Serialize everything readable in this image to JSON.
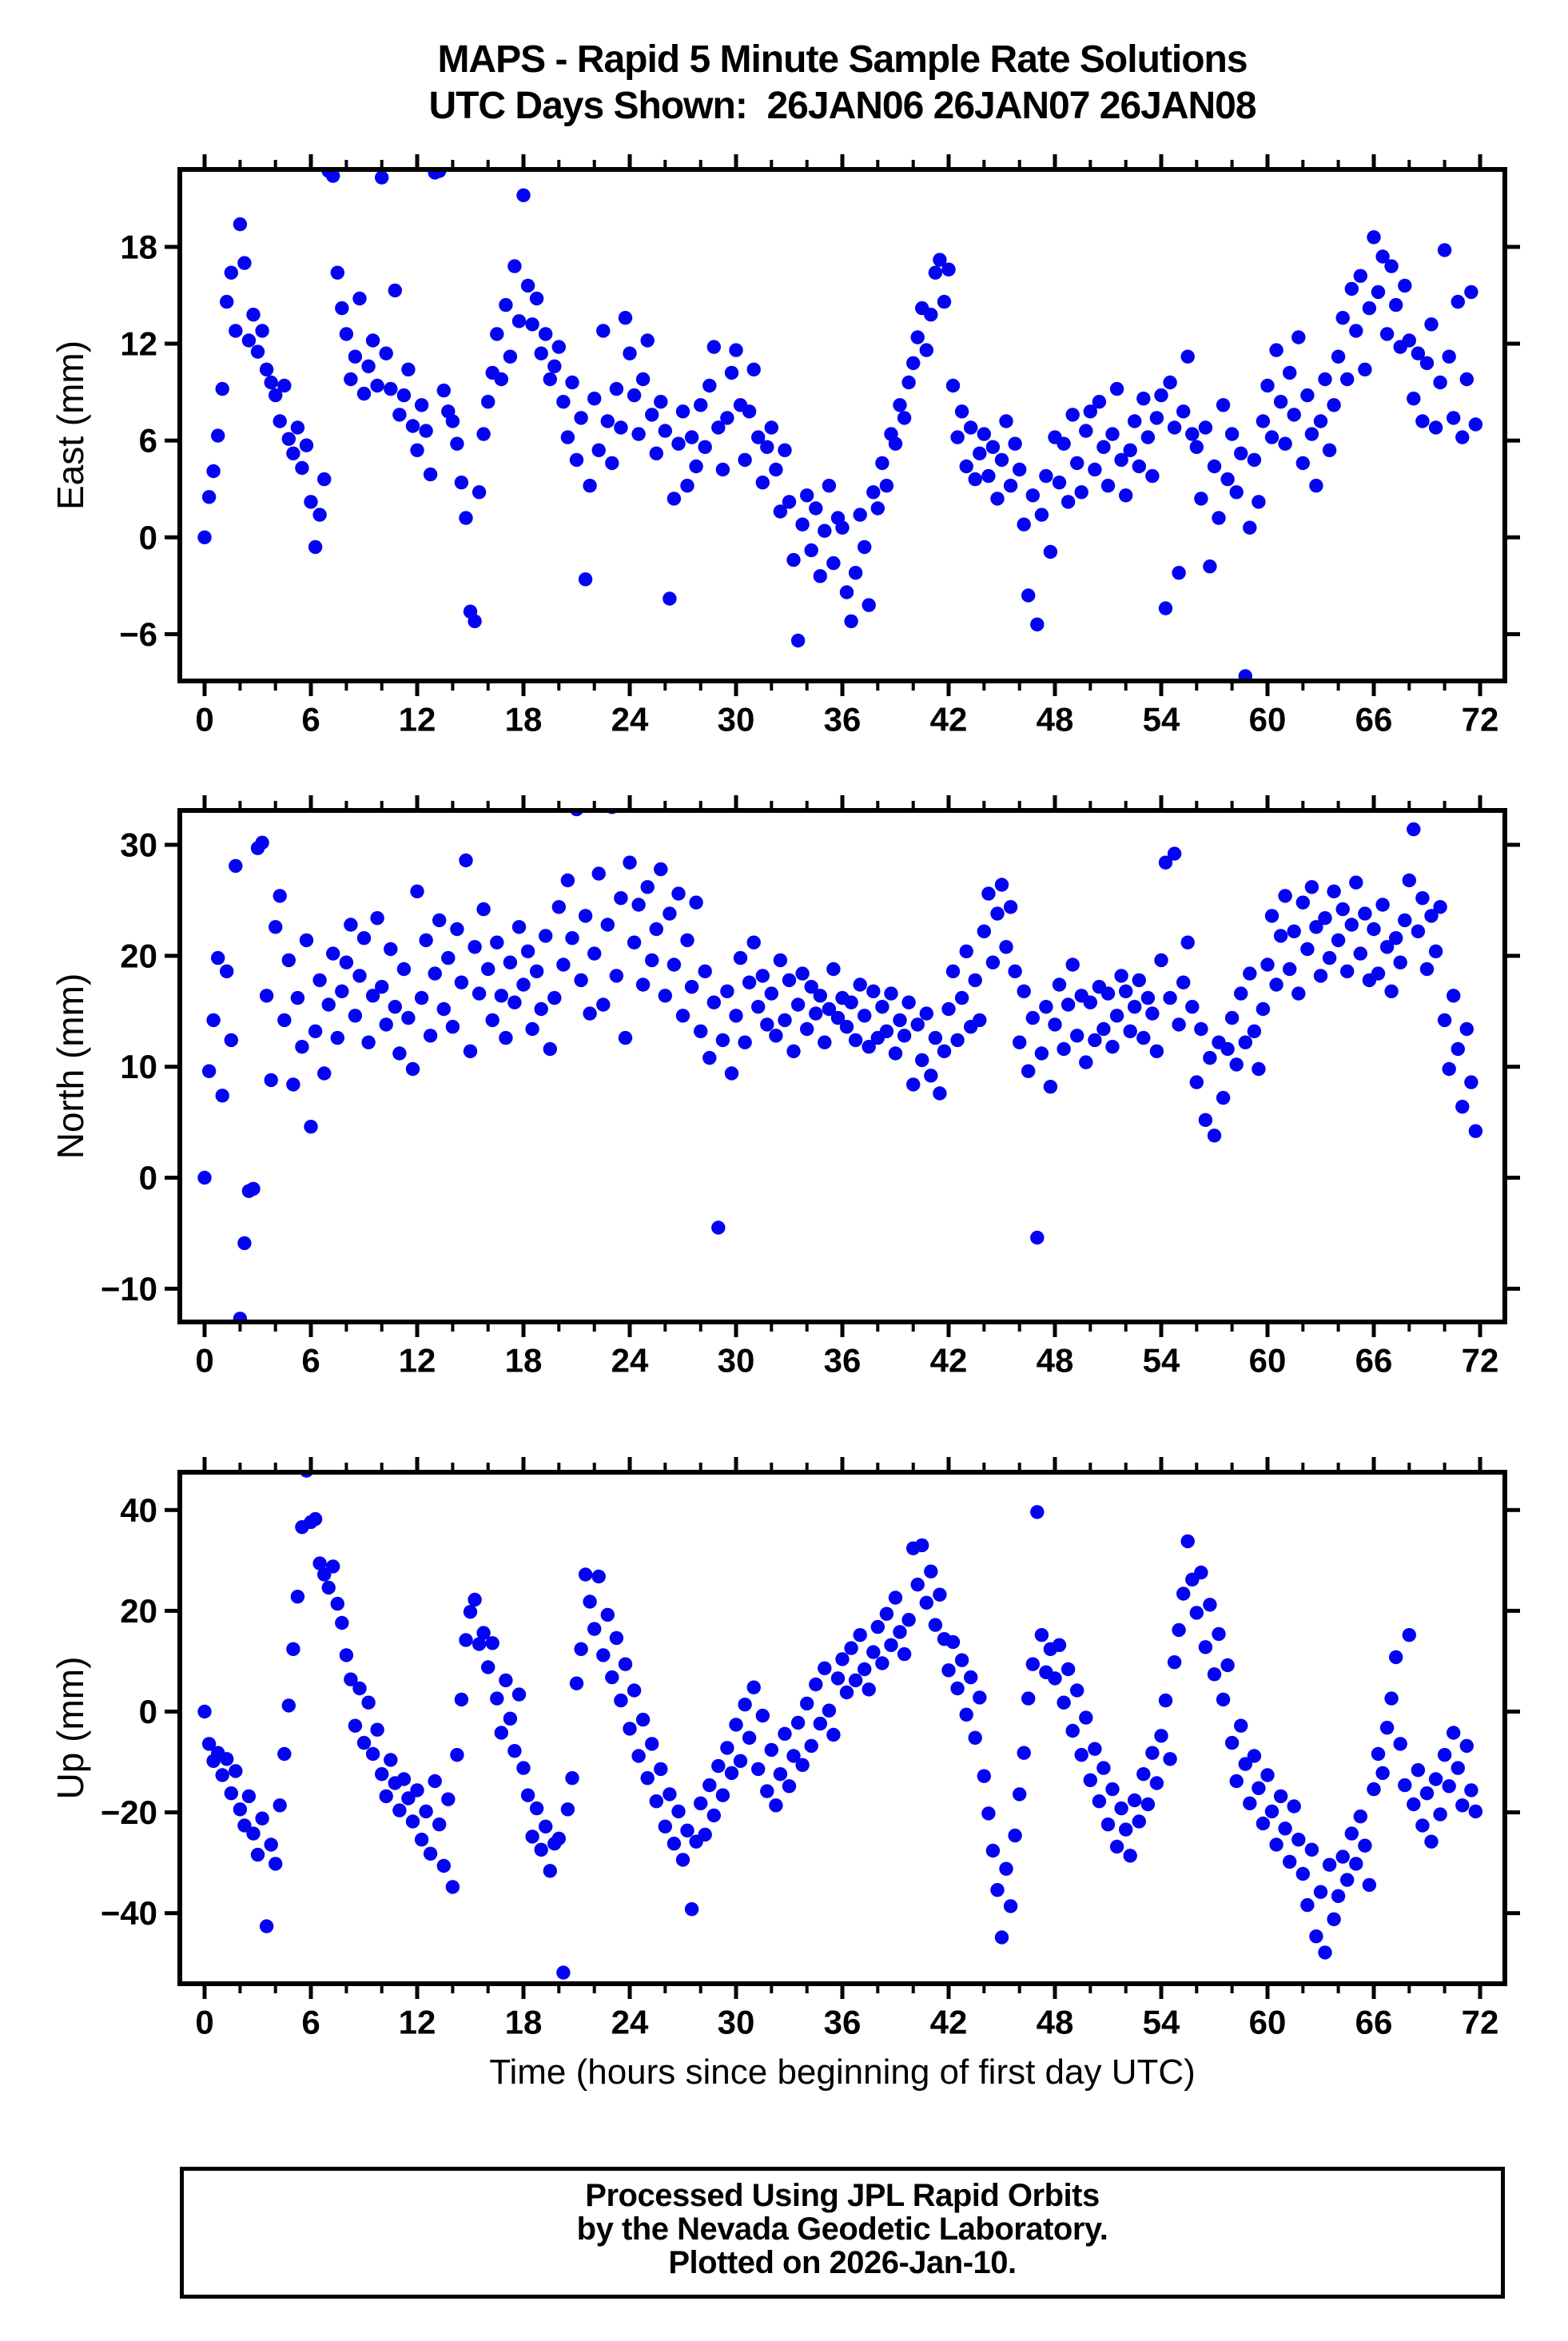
{
  "title": {
    "line1": "MAPS - Rapid 5 Minute Sample Rate Solutions",
    "line2": "UTC Days Shown:  26JAN06 26JAN07 26JAN08"
  },
  "xlabel": "Time (hours since beginning of first day UTC)",
  "footer": {
    "line1": "Processed Using JPL Rapid Orbits",
    "line2": "by the Nevada Geodetic Laboratory.",
    "line3": "Plotted on 2026-Jan-10."
  },
  "colors": {
    "point": "#0404f2",
    "axis": "#000000",
    "background": "#ffffff"
  },
  "chart_data": [
    {
      "id": "east",
      "type": "scatter",
      "ylabel": "East (mm)",
      "xlabel": "",
      "xlim": [
        -1.4,
        73.4
      ],
      "ylim": [
        -8.9,
        22.8
      ],
      "xticks": [
        0,
        6,
        12,
        18,
        24,
        30,
        36,
        42,
        48,
        54,
        60,
        66,
        72
      ],
      "xminor_step": 2,
      "yticks": [
        -6,
        0,
        6,
        12,
        18
      ],
      "grid": false,
      "legend": "none",
      "marker": {
        "shape": "circle",
        "radius_px": 8.7
      },
      "x_start": 0,
      "x_step": 0.25,
      "y": [
        0.0,
        2.5,
        4.1,
        6.3,
        9.2,
        14.6,
        16.4,
        12.8,
        19.4,
        17.0,
        12.2,
        13.8,
        11.5,
        12.8,
        10.4,
        9.6,
        8.8,
        7.2,
        9.4,
        6.1,
        5.2,
        6.8,
        4.3,
        5.7,
        2.2,
        -0.6,
        1.4,
        3.6,
        22.7,
        22.4,
        16.4,
        14.2,
        12.6,
        9.8,
        11.2,
        14.8,
        8.9,
        10.6,
        12.2,
        9.4,
        22.3,
        11.4,
        9.2,
        15.3,
        7.6,
        8.8,
        10.4,
        6.9,
        5.4,
        8.2,
        6.6,
        3.9,
        22.6,
        22.7,
        9.1,
        7.8,
        7.2,
        5.8,
        3.4,
        1.2,
        -4.6,
        -5.2,
        2.8,
        6.4,
        8.4,
        10.2,
        12.6,
        9.8,
        14.4,
        11.2,
        16.8,
        13.4,
        21.2,
        15.6,
        13.2,
        14.8,
        11.4,
        12.6,
        9.8,
        10.6,
        11.8,
        8.4,
        6.2,
        9.6,
        4.8,
        7.4,
        -2.6,
        3.2,
        8.6,
        5.4,
        12.8,
        7.2,
        4.6,
        9.2,
        6.8,
        13.6,
        11.4,
        8.8,
        6.4,
        9.8,
        12.2,
        7.6,
        5.2,
        8.4,
        6.6,
        -3.8,
        2.4,
        5.8,
        7.8,
        3.2,
        6.2,
        4.4,
        8.2,
        5.6,
        9.4,
        11.8,
        6.8,
        4.2,
        7.4,
        10.2,
        11.6,
        8.2,
        4.8,
        7.8,
        10.4,
        6.2,
        3.4,
        5.6,
        6.8,
        4.2,
        1.6,
        5.4,
        2.2,
        -1.4,
        -6.4,
        0.8,
        2.6,
        -0.8,
        1.8,
        -2.4,
        0.4,
        3.2,
        -1.6,
        1.2,
        0.6,
        -3.4,
        -5.2,
        -2.2,
        1.4,
        -0.6,
        -4.2,
        2.8,
        1.8,
        4.6,
        3.2,
        6.4,
        5.8,
        8.2,
        7.4,
        9.6,
        10.8,
        12.4,
        14.2,
        11.6,
        13.8,
        16.4,
        17.2,
        14.6,
        16.6,
        9.4,
        6.2,
        7.8,
        4.4,
        6.8,
        3.6,
        5.2,
        6.4,
        3.8,
        5.6,
        2.4,
        4.8,
        7.2,
        3.2,
        5.8,
        4.2,
        0.8,
        -3.6,
        2.6,
        -5.4,
        1.4,
        3.8,
        -0.9,
        6.2,
        3.4,
        5.8,
        2.2,
        7.6,
        4.6,
        2.8,
        6.6,
        7.8,
        4.2,
        8.4,
        5.6,
        3.2,
        6.4,
        9.2,
        4.8,
        2.6,
        5.4,
        7.2,
        4.4,
        8.6,
        6.2,
        3.8,
        7.4,
        8.8,
        -4.4,
        9.6,
        6.8,
        -2.2,
        7.8,
        11.2,
        6.4,
        5.6,
        2.4,
        6.8,
        -1.8,
        4.4,
        1.2,
        8.2,
        3.6,
        6.4,
        2.8,
        5.2,
        -8.6,
        0.6,
        4.8,
        2.2,
        7.2,
        9.4,
        6.2,
        11.6,
        8.4,
        5.8,
        10.2,
        7.6,
        12.4,
        4.6,
        8.8,
        6.4,
        3.2,
        7.2,
        9.8,
        5.4,
        8.2,
        11.2,
        13.6,
        9.8,
        15.4,
        12.8,
        16.2,
        10.4,
        14.2,
        18.6,
        15.2,
        17.4,
        12.6,
        16.8,
        14.4,
        11.8,
        15.6,
        12.2,
        8.6,
        11.4,
        7.2,
        10.8,
        13.2,
        6.8,
        9.6,
        17.8,
        11.2,
        7.4,
        14.6,
        6.2,
        9.8,
        15.2,
        7.0
      ]
    },
    {
      "id": "north",
      "type": "scatter",
      "ylabel": "North (mm)",
      "xlabel": "",
      "xlim": [
        -1.4,
        73.4
      ],
      "ylim": [
        -13.0,
        33.1
      ],
      "xticks": [
        0,
        6,
        12,
        18,
        24,
        30,
        36,
        42,
        48,
        54,
        60,
        66,
        72
      ],
      "xminor_step": 2,
      "yticks": [
        -10,
        0,
        10,
        20,
        30
      ],
      "grid": false,
      "legend": "none",
      "marker": {
        "shape": "circle",
        "radius_px": 8.7
      },
      "x_start": 0,
      "x_step": 0.25,
      "y": [
        0.0,
        9.6,
        14.2,
        19.8,
        7.4,
        18.6,
        12.4,
        28.1,
        -12.7,
        -5.9,
        -1.2,
        -1.0,
        29.7,
        30.2,
        16.4,
        8.8,
        22.6,
        25.4,
        14.2,
        19.6,
        8.4,
        16.2,
        11.8,
        21.4,
        4.6,
        13.2,
        17.8,
        9.4,
        15.6,
        20.2,
        12.6,
        16.8,
        19.4,
        22.8,
        14.6,
        18.2,
        21.6,
        12.2,
        16.4,
        23.4,
        17.2,
        13.8,
        20.6,
        15.4,
        11.2,
        18.8,
        14.4,
        9.8,
        25.8,
        16.2,
        21.4,
        12.8,
        18.4,
        23.2,
        15.2,
        19.8,
        13.6,
        22.4,
        17.6,
        28.6,
        11.4,
        20.8,
        16.6,
        24.2,
        18.8,
        14.2,
        21.2,
        16.4,
        12.6,
        19.4,
        15.8,
        22.6,
        17.4,
        20.4,
        13.4,
        18.6,
        15.2,
        21.8,
        11.6,
        16.2,
        24.4,
        19.2,
        26.8,
        21.6,
        33.2,
        17.8,
        23.6,
        14.8,
        20.2,
        27.4,
        15.6,
        22.8,
        33.4,
        18.2,
        25.2,
        12.6,
        28.4,
        21.2,
        24.6,
        17.4,
        26.2,
        19.6,
        22.4,
        27.8,
        16.4,
        23.8,
        19.2,
        25.6,
        14.6,
        21.4,
        17.2,
        24.8,
        13.2,
        18.6,
        10.8,
        15.8,
        -4.5,
        12.4,
        16.8,
        9.4,
        14.6,
        19.8,
        12.2,
        17.6,
        21.2,
        15.4,
        18.2,
        13.8,
        16.6,
        12.8,
        19.6,
        14.2,
        17.8,
        11.4,
        15.6,
        18.4,
        13.4,
        17.2,
        14.8,
        16.4,
        12.2,
        15.2,
        18.8,
        14.4,
        16.2,
        13.6,
        15.8,
        12.4,
        17.4,
        14.6,
        11.8,
        16.8,
        12.6,
        15.4,
        13.2,
        16.6,
        11.2,
        14.2,
        12.8,
        15.8,
        8.4,
        13.8,
        10.6,
        14.8,
        9.2,
        12.6,
        7.6,
        11.4,
        15.2,
        18.6,
        12.4,
        16.2,
        20.4,
        13.6,
        17.8,
        14.2,
        22.2,
        25.6,
        19.4,
        23.8,
        26.4,
        20.8,
        24.4,
        18.6,
        12.2,
        16.8,
        9.6,
        14.4,
        -5.4,
        11.2,
        15.4,
        8.2,
        13.8,
        17.4,
        11.6,
        15.6,
        19.2,
        12.8,
        16.4,
        10.4,
        15.8,
        12.4,
        17.2,
        13.4,
        16.6,
        11.8,
        14.6,
        18.2,
        16.8,
        13.2,
        15.4,
        17.8,
        12.6,
        16.2,
        14.8,
        11.4,
        19.6,
        28.4,
        16.2,
        29.2,
        13.8,
        17.6,
        21.2,
        15.4,
        8.6,
        13.4,
        5.2,
        10.8,
        3.8,
        12.2,
        7.2,
        11.6,
        14.4,
        10.2,
        16.6,
        12.2,
        18.4,
        13.2,
        9.8,
        15.2,
        19.2,
        23.6,
        17.4,
        21.8,
        25.4,
        18.8,
        22.2,
        16.6,
        24.8,
        20.6,
        26.2,
        22.6,
        18.2,
        23.4,
        19.8,
        25.8,
        21.4,
        24.2,
        18.6,
        22.8,
        26.6,
        20.2,
        23.8,
        17.8,
        22.4,
        18.4,
        24.6,
        20.8,
        16.8,
        21.6,
        19.4,
        23.2,
        26.8,
        31.4,
        22.2,
        25.2,
        18.8,
        23.6,
        20.4,
        24.4,
        14.2,
        9.8,
        16.4,
        11.6,
        6.4,
        13.4,
        8.6,
        4.2
      ]
    },
    {
      "id": "up",
      "type": "scatter",
      "ylabel": "Up (mm)",
      "xlabel": "Time (hours since beginning of first day UTC)",
      "xlim": [
        -1.4,
        73.4
      ],
      "ylim": [
        -54.0,
        47.5
      ],
      "xticks": [
        0,
        6,
        12,
        18,
        24,
        30,
        36,
        42,
        48,
        54,
        60,
        66,
        72
      ],
      "xminor_step": 2,
      "yticks": [
        -40,
        -20,
        0,
        20,
        40
      ],
      "grid": false,
      "legend": "none",
      "marker": {
        "shape": "circle",
        "radius_px": 8.7
      },
      "x_start": 0,
      "x_step": 0.25,
      "y": [
        0.0,
        -6.4,
        -9.8,
        -8.2,
        -12.6,
        -9.4,
        -16.2,
        -11.8,
        -19.4,
        -22.6,
        -16.8,
        -24.2,
        -28.4,
        -21.2,
        -42.6,
        -26.4,
        -30.2,
        -18.6,
        -8.4,
        1.2,
        12.4,
        22.8,
        36.6,
        47.8,
        37.6,
        38.2,
        29.4,
        27.2,
        24.6,
        28.8,
        21.4,
        17.6,
        11.2,
        6.4,
        -2.8,
        4.6,
        -6.2,
        1.8,
        -8.4,
        -3.6,
        -12.4,
        -16.8,
        -9.6,
        -14.2,
        -19.6,
        -13.4,
        -17.2,
        -21.8,
        -15.6,
        -25.4,
        -19.8,
        -28.2,
        -13.8,
        -22.4,
        -30.6,
        -17.4,
        -34.8,
        -8.6,
        2.4,
        14.2,
        19.8,
        22.2,
        13.4,
        15.6,
        8.8,
        13.6,
        2.6,
        -4.2,
        6.2,
        -1.4,
        -7.8,
        3.4,
        -11.2,
        -16.6,
        -24.8,
        -19.2,
        -27.4,
        -22.8,
        -31.6,
        -26.2,
        -25.2,
        -51.8,
        -19.4,
        -13.2,
        5.6,
        12.4,
        27.2,
        21.8,
        16.4,
        26.8,
        11.2,
        19.2,
        6.8,
        14.6,
        2.2,
        9.4,
        -3.4,
        4.2,
        -8.8,
        -1.6,
        -13.2,
        -6.4,
        -17.8,
        -11.4,
        -22.8,
        -16.4,
        -26.2,
        -19.8,
        -29.4,
        -23.6,
        -39.2,
        -25.8,
        -18.2,
        -24.4,
        -14.6,
        -20.6,
        -10.8,
        -16.6,
        -7.2,
        -12.2,
        -2.6,
        -9.8,
        1.4,
        -5.2,
        4.8,
        -11.4,
        -0.8,
        -15.8,
        -7.6,
        -18.6,
        -12.4,
        -4.4,
        -14.8,
        -8.8,
        -2.2,
        -10.6,
        1.6,
        -6.8,
        5.4,
        -2.4,
        8.6,
        0.2,
        -4.6,
        6.6,
        10.4,
        3.8,
        12.6,
        6.2,
        15.2,
        8.4,
        4.4,
        11.8,
        16.8,
        9.6,
        19.4,
        13.2,
        22.6,
        15.8,
        11.4,
        18.2,
        32.4,
        25.2,
        33.0,
        21.6,
        27.8,
        17.2,
        23.2,
        14.4,
        8.2,
        13.8,
        4.6,
        10.2,
        -0.6,
        6.8,
        -5.2,
        2.8,
        -12.8,
        -20.2,
        -27.6,
        -35.4,
        -44.8,
        -31.2,
        -38.6,
        -24.6,
        -16.4,
        -8.2,
        2.6,
        9.4,
        39.6,
        15.2,
        7.8,
        12.4,
        6.6,
        13.2,
        1.8,
        8.4,
        -3.8,
        4.2,
        -8.6,
        -1.2,
        -13.6,
        -7.4,
        -17.8,
        -11.2,
        -22.4,
        -15.4,
        -26.8,
        -19.2,
        -23.4,
        -28.6,
        -17.6,
        -21.8,
        -12.4,
        -18.4,
        -8.2,
        -14.2,
        -4.8,
        2.2,
        -9.4,
        9.8,
        16.2,
        23.4,
        33.8,
        26.2,
        19.6,
        27.6,
        12.8,
        21.2,
        7.4,
        15.4,
        2.4,
        9.2,
        -6.2,
        -13.8,
        -2.8,
        -10.4,
        -18.2,
        -8.8,
        -15.2,
        -22.2,
        -12.6,
        -19.8,
        -26.4,
        -16.8,
        -23.2,
        -29.8,
        -18.8,
        -25.4,
        -32.2,
        -38.4,
        -27.4,
        -44.6,
        -35.8,
        -47.8,
        -30.4,
        -41.2,
        -36.6,
        -28.8,
        -33.4,
        -24.2,
        -30.2,
        -20.8,
        -26.6,
        -34.4,
        -15.4,
        -8.4,
        -12.2,
        -3.2,
        2.6,
        10.8,
        -6.4,
        -14.6,
        15.2,
        -18.4,
        -11.6,
        -22.6,
        -16.2,
        -25.8,
        -13.4,
        -20.4,
        -8.6,
        -14.8,
        -4.2,
        -11.2,
        -18.6,
        -6.8,
        -15.6,
        -19.8
      ]
    }
  ]
}
